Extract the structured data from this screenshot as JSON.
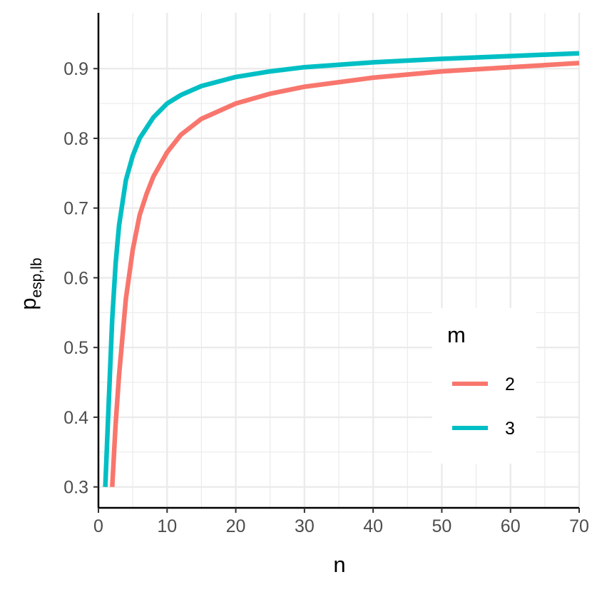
{
  "chart_data": {
    "type": "line",
    "xlabel": "n",
    "ylabel_main": "p",
    "ylabel_sub": "esp,lb",
    "xlim": [
      0,
      70
    ],
    "ylim": [
      0.27,
      0.98
    ],
    "x_ticks": [
      0,
      10,
      20,
      30,
      40,
      50,
      60,
      70
    ],
    "y_ticks": [
      0.3,
      0.4,
      0.5,
      0.6,
      0.7,
      0.8,
      0.9
    ],
    "y_tick_labels": [
      "0.3",
      "0.4",
      "0.5",
      "0.6",
      "0.7",
      "0.8",
      "0.9"
    ],
    "grid": true,
    "legend": {
      "title": "m",
      "position": "right",
      "entries": [
        "2",
        "3"
      ]
    },
    "series": [
      {
        "name": "2",
        "color": "#F8766D",
        "x": [
          2,
          2.5,
          3,
          4,
          5,
          6,
          7,
          8,
          10,
          12,
          15,
          20,
          25,
          30,
          40,
          50,
          60,
          70
        ],
        "y": [
          0.3,
          0.39,
          0.46,
          0.57,
          0.64,
          0.69,
          0.72,
          0.745,
          0.78,
          0.805,
          0.828,
          0.85,
          0.864,
          0.874,
          0.887,
          0.896,
          0.902,
          0.908
        ]
      },
      {
        "name": "3",
        "color": "#00BFC4",
        "x": [
          1,
          1.5,
          2,
          2.5,
          3,
          4,
          5,
          6,
          7,
          8,
          10,
          12,
          15,
          20,
          25,
          30,
          40,
          50,
          60,
          70
        ],
        "y": [
          0.3,
          0.42,
          0.54,
          0.62,
          0.675,
          0.74,
          0.775,
          0.8,
          0.815,
          0.83,
          0.85,
          0.862,
          0.875,
          0.888,
          0.896,
          0.902,
          0.909,
          0.914,
          0.918,
          0.922
        ]
      }
    ]
  }
}
